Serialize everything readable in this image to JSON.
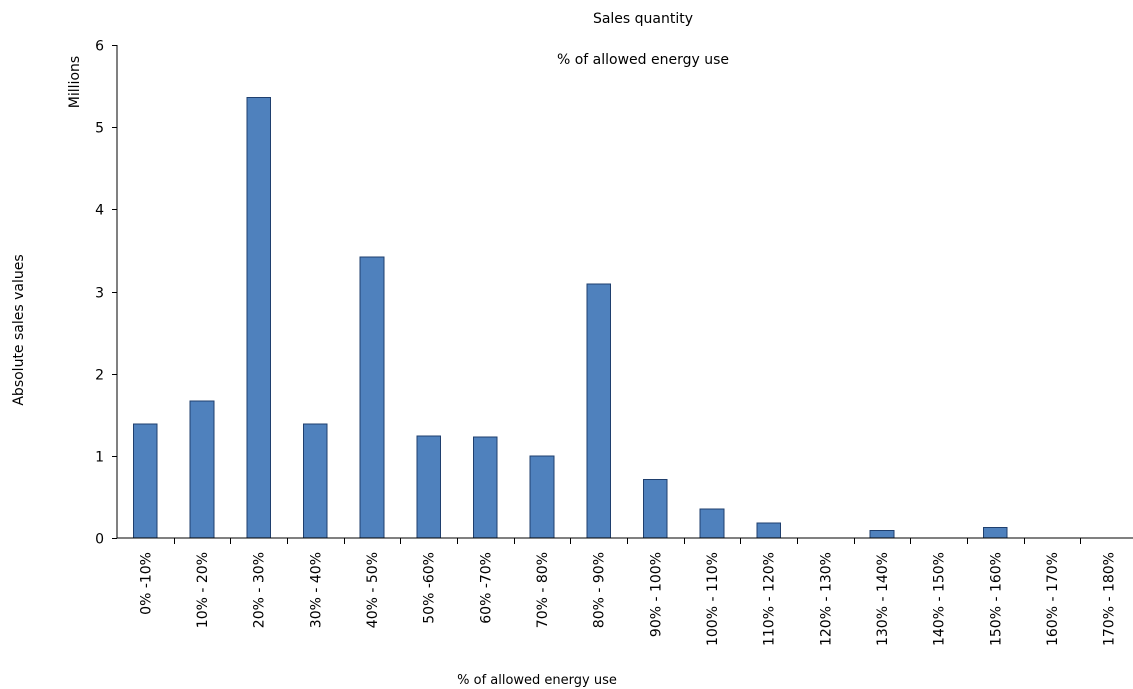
{
  "chart_data": {
    "type": "bar",
    "title": "Sales quantity",
    "subtitle": "% of allowed energy use",
    "xlabel": "% of allowed energy use",
    "ylabel": "Absolute sales values",
    "y_unit_label": "Millions",
    "ylim": [
      0,
      6
    ],
    "yticks": [
      "0",
      "1",
      "2",
      "3",
      "4",
      "5",
      "6"
    ],
    "grid": false,
    "legend": "none",
    "bar_color": "#4f81bd",
    "categories": [
      "0% -10%",
      "10% - 20%",
      "20% - 30%",
      "30% - 40%",
      "40% - 50%",
      "50% -60%",
      "60% -70%",
      "70% - 80%",
      "80% - 90%",
      "90% - 100%",
      "100% - 110%",
      "110% - 120%",
      "120% - 130%",
      "130% - 140%",
      "140% - 150%",
      "150% - 160%",
      "160% - 170%",
      "170% - 180%"
    ],
    "values": [
      1.39,
      1.67,
      5.36,
      1.39,
      3.42,
      1.24,
      1.23,
      1.0,
      3.09,
      0.71,
      0.35,
      0.18,
      0,
      0.09,
      0,
      0.13,
      0,
      0
    ]
  }
}
